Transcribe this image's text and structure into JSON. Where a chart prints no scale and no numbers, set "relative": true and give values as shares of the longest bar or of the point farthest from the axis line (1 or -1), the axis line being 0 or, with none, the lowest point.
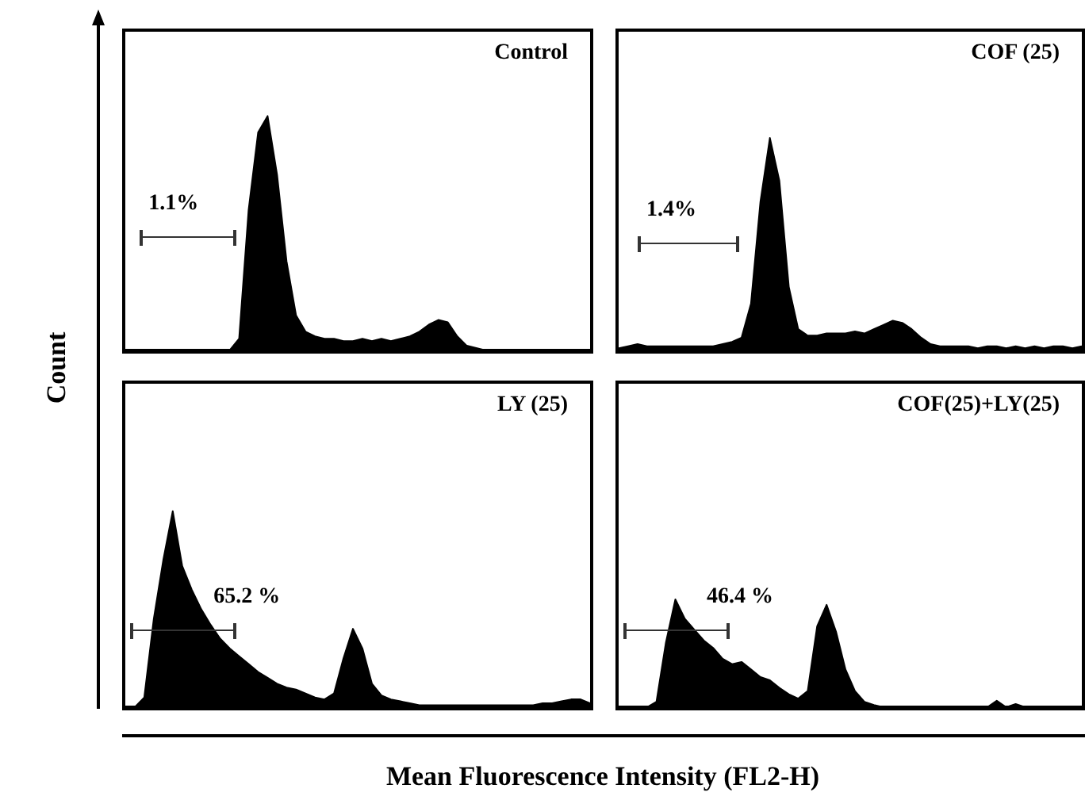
{
  "chart_data": [
    {
      "type": "area",
      "title": "Control",
      "ylabel": "Count",
      "relative": true,
      "tick_labels": false,
      "color": "#000000",
      "annotations": [
        "1.1%"
      ],
      "categories": [
        null,
        null,
        null,
        null,
        null,
        null,
        null,
        null,
        null,
        null,
        null,
        null,
        null,
        null,
        null,
        null,
        null,
        null,
        null,
        null,
        null,
        null,
        null,
        null,
        null,
        null,
        null,
        null,
        null,
        null,
        null,
        null,
        null,
        null,
        null,
        null,
        null,
        null,
        null,
        null,
        null,
        null,
        null,
        null,
        null,
        null,
        null,
        null,
        null,
        null
      ],
      "values": [
        0,
        0,
        0,
        0,
        0,
        0,
        0,
        0,
        0,
        0,
        0,
        0,
        0.05,
        0.6,
        0.93,
        1,
        0.75,
        0.38,
        0.15,
        0.08,
        0.06,
        0.05,
        0.05,
        0.04,
        0.04,
        0.05,
        0.04,
        0.05,
        0.04,
        0.05,
        0.06,
        0.08,
        0.11,
        0.13,
        0.12,
        0.06,
        0.02,
        0.01,
        0,
        0,
        0,
        0,
        0,
        0,
        0,
        0,
        0,
        0,
        0,
        0
      ]
    },
    {
      "type": "area",
      "title": "COF (25)",
      "relative": true,
      "tick_labels": false,
      "color": "#000000",
      "annotations": [
        "1.4%"
      ],
      "categories": [
        null,
        null,
        null,
        null,
        null,
        null,
        null,
        null,
        null,
        null,
        null,
        null,
        null,
        null,
        null,
        null,
        null,
        null,
        null,
        null,
        null,
        null,
        null,
        null,
        null,
        null,
        null,
        null,
        null,
        null,
        null,
        null,
        null,
        null,
        null,
        null,
        null,
        null,
        null,
        null,
        null,
        null,
        null,
        null,
        null,
        null,
        null,
        null,
        null,
        null
      ],
      "values": [
        0.01,
        0.02,
        0.03,
        0.02,
        0.02,
        0.02,
        0.02,
        0.02,
        0.02,
        0.02,
        0.02,
        0.03,
        0.04,
        0.06,
        0.22,
        0.7,
        1,
        0.8,
        0.3,
        0.1,
        0.07,
        0.07,
        0.08,
        0.08,
        0.08,
        0.09,
        0.08,
        0.1,
        0.12,
        0.14,
        0.13,
        0.1,
        0.06,
        0.03,
        0.02,
        0.02,
        0.02,
        0.02,
        0.01,
        0.02,
        0.02,
        0.01,
        0.02,
        0.01,
        0.02,
        0.01,
        0.02,
        0.02,
        0.01,
        0.02
      ]
    },
    {
      "type": "area",
      "title": "LY (25)",
      "xlabel": "Mean Fluorescence Intensity (FL2-H)",
      "relative": true,
      "tick_labels": false,
      "color": "#000000",
      "annotations": [
        "65.2 %"
      ],
      "categories": [
        null,
        null,
        null,
        null,
        null,
        null,
        null,
        null,
        null,
        null,
        null,
        null,
        null,
        null,
        null,
        null,
        null,
        null,
        null,
        null,
        null,
        null,
        null,
        null,
        null,
        null,
        null,
        null,
        null,
        null,
        null,
        null,
        null,
        null,
        null,
        null,
        null,
        null,
        null,
        null,
        null,
        null,
        null,
        null,
        null,
        null,
        null,
        null,
        null,
        null
      ],
      "values": [
        0,
        0,
        0.05,
        0.45,
        0.75,
        1,
        0.72,
        0.6,
        0.5,
        0.42,
        0.35,
        0.3,
        0.26,
        0.22,
        0.18,
        0.15,
        0.12,
        0.1,
        0.09,
        0.07,
        0.05,
        0.04,
        0.07,
        0.25,
        0.4,
        0.3,
        0.12,
        0.06,
        0.04,
        0.03,
        0.02,
        0.01,
        0.01,
        0.01,
        0.01,
        0.01,
        0.01,
        0.01,
        0.01,
        0.01,
        0.01,
        0.01,
        0.01,
        0.01,
        0.02,
        0.02,
        0.03,
        0.04,
        0.04,
        0.02
      ]
    },
    {
      "type": "area",
      "title": "COF(25)+LY(25)",
      "relative": true,
      "tick_labels": false,
      "color": "#000000",
      "annotations": [
        "46.4 %"
      ],
      "categories": [
        null,
        null,
        null,
        null,
        null,
        null,
        null,
        null,
        null,
        null,
        null,
        null,
        null,
        null,
        null,
        null,
        null,
        null,
        null,
        null,
        null,
        null,
        null,
        null,
        null,
        null,
        null,
        null,
        null,
        null,
        null,
        null,
        null,
        null,
        null,
        null,
        null,
        null,
        null,
        null,
        null,
        null,
        null,
        null,
        null,
        null,
        null,
        null,
        null,
        null
      ],
      "values": [
        0,
        0,
        0,
        0,
        0.05,
        0.6,
        1,
        0.82,
        0.72,
        0.62,
        0.55,
        0.45,
        0.4,
        0.42,
        0.35,
        0.28,
        0.25,
        0.18,
        0.12,
        0.08,
        0.15,
        0.75,
        0.95,
        0.7,
        0.35,
        0.15,
        0.05,
        0.02,
        0,
        0,
        0,
        0,
        0,
        0,
        0,
        0,
        0,
        0,
        0,
        0,
        0.06,
        0,
        0.03,
        0,
        0,
        0,
        0,
        0,
        0,
        0
      ]
    }
  ]
}
